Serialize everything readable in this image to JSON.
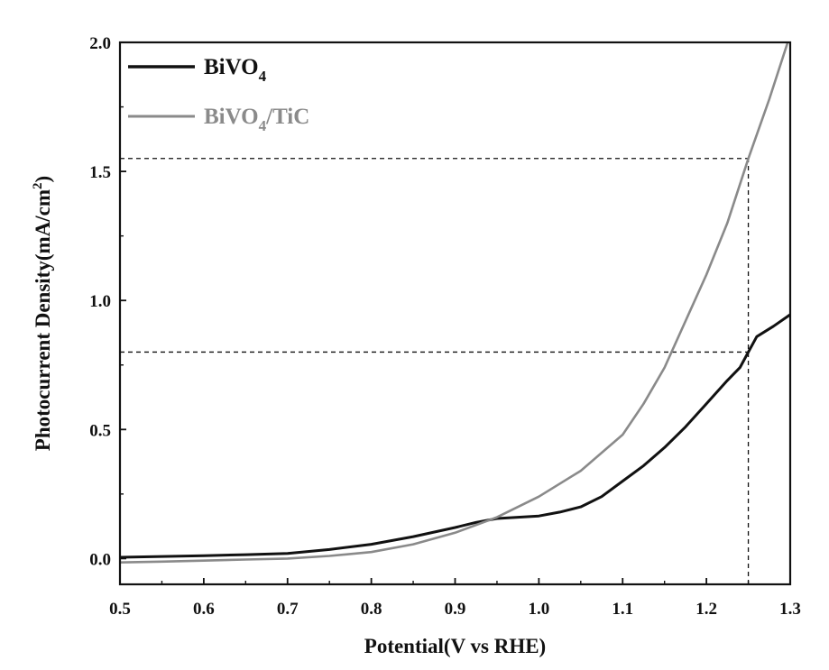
{
  "chart_data": {
    "type": "line",
    "xlabel": "Potential(V vs RHE)",
    "ylabel": "Photocurrent Density(mA/cm²)",
    "xlim": [
      0.5,
      1.3
    ],
    "ylim": [
      -0.1,
      2.0
    ],
    "x_ticks": [
      0.5,
      0.6,
      0.7,
      0.8,
      0.9,
      1.0,
      1.1,
      1.2,
      1.3
    ],
    "y_ticks": [
      0.0,
      0.5,
      1.0,
      1.5,
      2.0
    ],
    "x_tick_labels": [
      "0.5",
      "0.6",
      "0.7",
      "0.8",
      "0.9",
      "1.0",
      "1.1",
      "1.2",
      "1.3"
    ],
    "y_tick_labels": [
      "0.0",
      "0.5",
      "1.0",
      "1.5",
      "2.0"
    ],
    "grid": false,
    "legend_position": "top-left",
    "series": [
      {
        "name_base": "BiVO",
        "name_sub": "4",
        "name_suffix": "",
        "color": "#111111",
        "x": [
          0.5,
          0.55,
          0.6,
          0.65,
          0.7,
          0.75,
          0.8,
          0.85,
          0.9,
          0.925,
          0.95,
          0.975,
          1.0,
          1.025,
          1.05,
          1.075,
          1.1,
          1.125,
          1.15,
          1.175,
          1.2,
          1.225,
          1.24,
          1.25,
          1.26,
          1.28,
          1.3
        ],
        "y": [
          0.005,
          0.008,
          0.011,
          0.015,
          0.02,
          0.035,
          0.055,
          0.085,
          0.12,
          0.14,
          0.155,
          0.16,
          0.165,
          0.18,
          0.2,
          0.24,
          0.3,
          0.36,
          0.43,
          0.51,
          0.6,
          0.69,
          0.74,
          0.8,
          0.86,
          0.9,
          0.945
        ]
      },
      {
        "name_base": "BiVO",
        "name_sub": "4",
        "name_suffix": "/TiC",
        "color": "#8a8a8a",
        "x": [
          0.5,
          0.55,
          0.6,
          0.65,
          0.7,
          0.75,
          0.8,
          0.85,
          0.9,
          0.95,
          1.0,
          1.05,
          1.1,
          1.125,
          1.15,
          1.175,
          1.2,
          1.225,
          1.25,
          1.275,
          1.3
        ],
        "y": [
          -0.015,
          -0.012,
          -0.008,
          -0.004,
          0.0,
          0.01,
          0.025,
          0.055,
          0.1,
          0.16,
          0.24,
          0.34,
          0.48,
          0.6,
          0.74,
          0.92,
          1.1,
          1.3,
          1.55,
          1.78,
          2.03
        ]
      }
    ],
    "reference_lines": [
      {
        "orientation": "horizontal",
        "y": 1.55,
        "x_from": 0.5,
        "x_to": 1.25
      },
      {
        "orientation": "horizontal",
        "y": 0.8,
        "x_from": 0.5,
        "x_to": 1.25
      },
      {
        "orientation": "vertical",
        "x": 1.25,
        "y_from": -0.1,
        "y_to": 1.55
      }
    ]
  }
}
